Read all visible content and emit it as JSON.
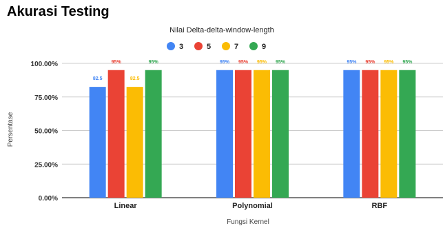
{
  "chart_data": {
    "type": "bar",
    "title": "Akurasi Testing",
    "legend_title": "Nilai Delta-delta-window-length",
    "legend_position": "top",
    "xlabel": "Fungsi Kernel",
    "ylabel": "Persentase",
    "ylim": [
      0,
      100
    ],
    "yticks": [
      "0.00%",
      "25.00%",
      "50.00%",
      "75.00%",
      "100.00%"
    ],
    "grid": true,
    "categories": [
      "Linear",
      "Polynomial",
      "RBF"
    ],
    "series": [
      {
        "name": "3",
        "color": "#4285f4",
        "values": [
          82.5,
          95,
          95
        ],
        "labels": [
          "82.5",
          "95%",
          "95%"
        ]
      },
      {
        "name": "5",
        "color": "#ea4335",
        "values": [
          95,
          95,
          95
        ],
        "labels": [
          "95%",
          "95%",
          "95%"
        ]
      },
      {
        "name": "7",
        "color": "#fbbc04",
        "values": [
          82.5,
          95,
          95
        ],
        "labels": [
          "82.5",
          "95%",
          "95%"
        ]
      },
      {
        "name": "9",
        "color": "#34a853",
        "values": [
          95,
          95,
          95
        ],
        "labels": [
          "95%",
          "95%",
          "95%"
        ]
      }
    ]
  }
}
